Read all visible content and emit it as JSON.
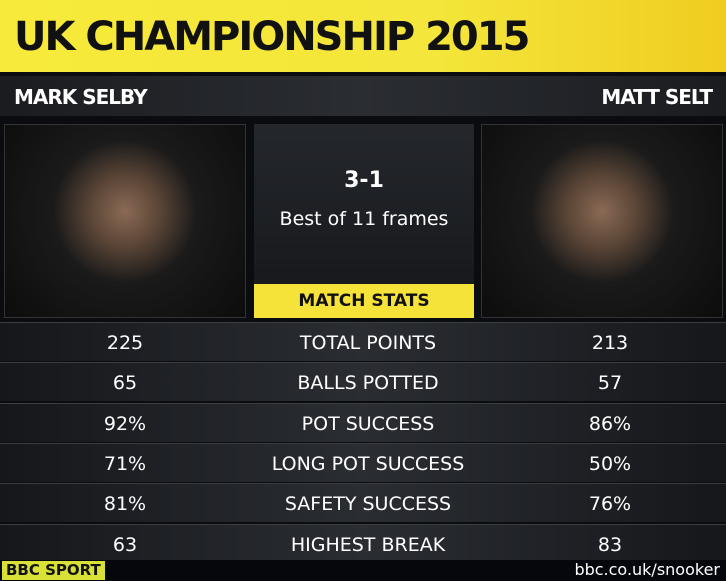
{
  "title": "UK CHAMPIONSHIP 2015",
  "players": {
    "left": "MARK SELBY",
    "right": "MATT SELT"
  },
  "match": {
    "score": "3-1",
    "format": "Best of 11 frames",
    "stats_label": "MATCH STATS"
  },
  "stats": [
    {
      "label": "TOTAL POINTS",
      "left": "225",
      "right": "213"
    },
    {
      "label": "BALLS POTTED",
      "left": "65",
      "right": "57"
    },
    {
      "label": "POT SUCCESS",
      "left": "92%",
      "right": "86%"
    },
    {
      "label": "LONG POT SUCCESS",
      "left": "71%",
      "right": "50%"
    },
    {
      "label": "SAFETY SUCCESS",
      "left": "81%",
      "right": "76%"
    },
    {
      "label": "HIGHEST BREAK",
      "left": "63",
      "right": "83"
    }
  ],
  "footer": {
    "logo": "BBC SPORT",
    "url": "bbc.co.uk/snooker"
  },
  "colors": {
    "accent": "#f6e33a"
  }
}
